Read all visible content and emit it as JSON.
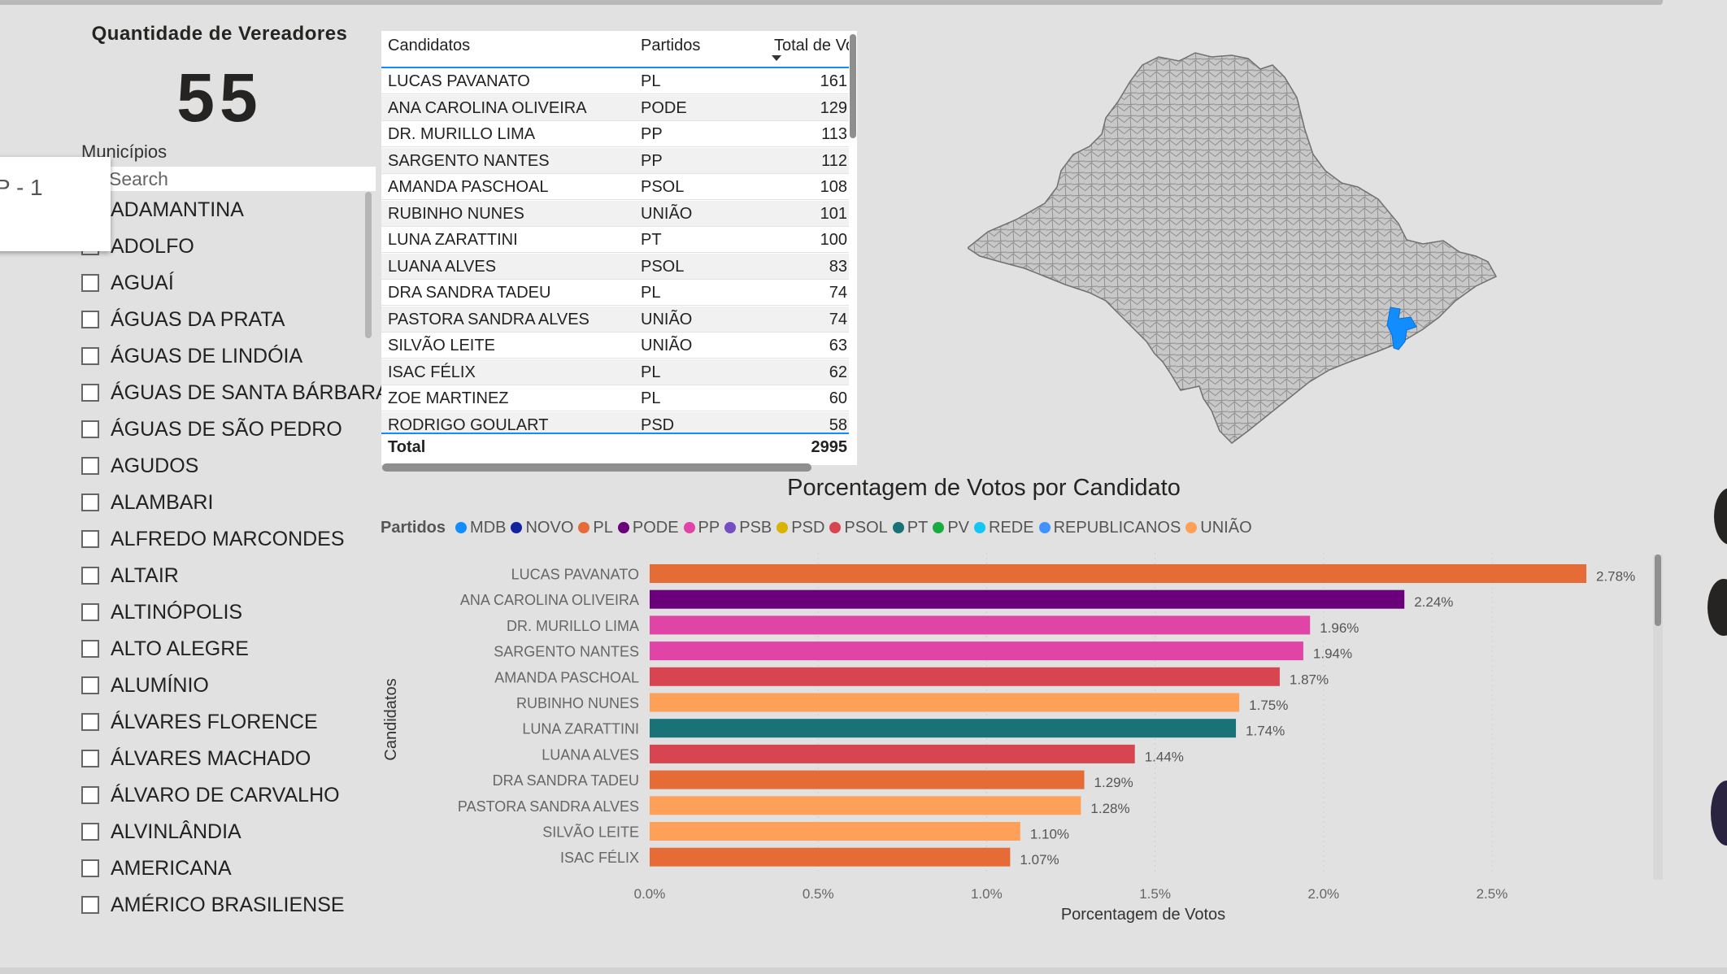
{
  "kpi": {
    "title": "Quantidade de Vereadores",
    "value": "55"
  },
  "slicer": {
    "title": "Municípios",
    "search_placeholder": "Search",
    "items": [
      "ADAMANTINA",
      "ADOLFO",
      "AGUAÍ",
      "ÁGUAS DA PRATA",
      "ÁGUAS DE LINDÓIA",
      "ÁGUAS DE SANTA BÁRBARA",
      "ÁGUAS DE SÃO PEDRO",
      "AGUDOS",
      "ALAMBARI",
      "ALFREDO MARCONDES",
      "ALTAIR",
      "ALTINÓPOLIS",
      "ALTO ALEGRE",
      "ALUMÍNIO",
      "ÁLVARES FLORENCE",
      "ÁLVARES MACHADO",
      "ÁLVARO DE CARVALHO",
      "ALVINLÂNDIA",
      "AMERICANA",
      "AMÉRICO BRASILIENSE"
    ]
  },
  "popup": {
    "text": "P - 1"
  },
  "table": {
    "headers": [
      "Candidatos",
      "Partidos",
      "Total de Vo"
    ],
    "rows": [
      {
        "name": "LUCAS PAVANATO",
        "party": "PL",
        "total": "161"
      },
      {
        "name": "ANA CAROLINA OLIVEIRA",
        "party": "PODE",
        "total": "129"
      },
      {
        "name": "DR. MURILLO LIMA",
        "party": "PP",
        "total": "113"
      },
      {
        "name": "SARGENTO NANTES",
        "party": "PP",
        "total": "112"
      },
      {
        "name": "AMANDA PASCHOAL",
        "party": "PSOL",
        "total": "108"
      },
      {
        "name": "RUBINHO NUNES",
        "party": "UNIÃO",
        "total": "101"
      },
      {
        "name": "LUNA ZARATTINI",
        "party": "PT",
        "total": "100"
      },
      {
        "name": "LUANA ALVES",
        "party": "PSOL",
        "total": "83"
      },
      {
        "name": "DRA SANDRA TADEU",
        "party": "PL",
        "total": "74"
      },
      {
        "name": "PASTORA SANDRA ALVES",
        "party": "UNIÃO",
        "total": "74"
      },
      {
        "name": "SILVÃO LEITE",
        "party": "UNIÃO",
        "total": "63"
      },
      {
        "name": "ISAC FÉLIX",
        "party": "PL",
        "total": "62"
      },
      {
        "name": "ZOE MARTINEZ",
        "party": "PL",
        "total": "60"
      },
      {
        "name": "RODRIGO GOULART",
        "party": "PSD",
        "total": "58"
      }
    ],
    "total_label": "Total",
    "total_value": "2995"
  },
  "legend": {
    "title": "Partidos",
    "items": [
      {
        "name": "MDB",
        "color": "#118dff"
      },
      {
        "name": "NOVO",
        "color": "#12239e"
      },
      {
        "name": "PL",
        "color": "#e66c37"
      },
      {
        "name": "PODE",
        "color": "#6b007b"
      },
      {
        "name": "PP",
        "color": "#e044a7"
      },
      {
        "name": "PSB",
        "color": "#744ec2"
      },
      {
        "name": "PSD",
        "color": "#d9b300"
      },
      {
        "name": "PSOL",
        "color": "#d64550"
      },
      {
        "name": "PT",
        "color": "#197278"
      },
      {
        "name": "PV",
        "color": "#1aab40"
      },
      {
        "name": "REDE",
        "color": "#15c6f4"
      },
      {
        "name": "REPUBLICANOS",
        "color": "#4092ff"
      },
      {
        "name": "UNIÃO",
        "color": "#ffa058"
      }
    ]
  },
  "chart_data": {
    "type": "bar",
    "orientation": "horizontal",
    "title": "Porcentagem de Votos por Candidato",
    "xlabel": "Porcentagem de Votos",
    "ylabel": "Candidatos",
    "xlim": [
      0,
      2.85
    ],
    "xticks": [
      0,
      0.5,
      1.0,
      1.5,
      2.0,
      2.5
    ],
    "xtick_labels": [
      "0.0%",
      "0.5%",
      "1.0%",
      "1.5%",
      "2.0%",
      "2.5%"
    ],
    "categories": [
      "LUCAS PAVANATO",
      "ANA CAROLINA OLIVEIRA",
      "DR. MURILLO LIMA",
      "SARGENTO NANTES",
      "AMANDA PASCHOAL",
      "RUBINHO NUNES",
      "LUNA ZARATTINI",
      "LUANA ALVES",
      "DRA SANDRA TADEU",
      "PASTORA SANDRA ALVES",
      "SILVÃO LEITE",
      "ISAC FÉLIX"
    ],
    "values": [
      2.78,
      2.24,
      1.96,
      1.94,
      1.87,
      1.75,
      1.74,
      1.44,
      1.29,
      1.28,
      1.1,
      1.07
    ],
    "labels": [
      "2.78%",
      "2.24%",
      "1.96%",
      "1.94%",
      "1.87%",
      "1.75%",
      "1.74%",
      "1.44%",
      "1.29%",
      "1.28%",
      "1.10%",
      "1.07%"
    ],
    "parties": [
      "PL",
      "PODE",
      "PP",
      "PP",
      "PSOL",
      "UNIÃO",
      "PT",
      "PSOL",
      "PL",
      "UNIÃO",
      "UNIÃO",
      "PL"
    ]
  },
  "map": {
    "base_color": "#c8c8c8",
    "highlight_color": "#118dff"
  }
}
